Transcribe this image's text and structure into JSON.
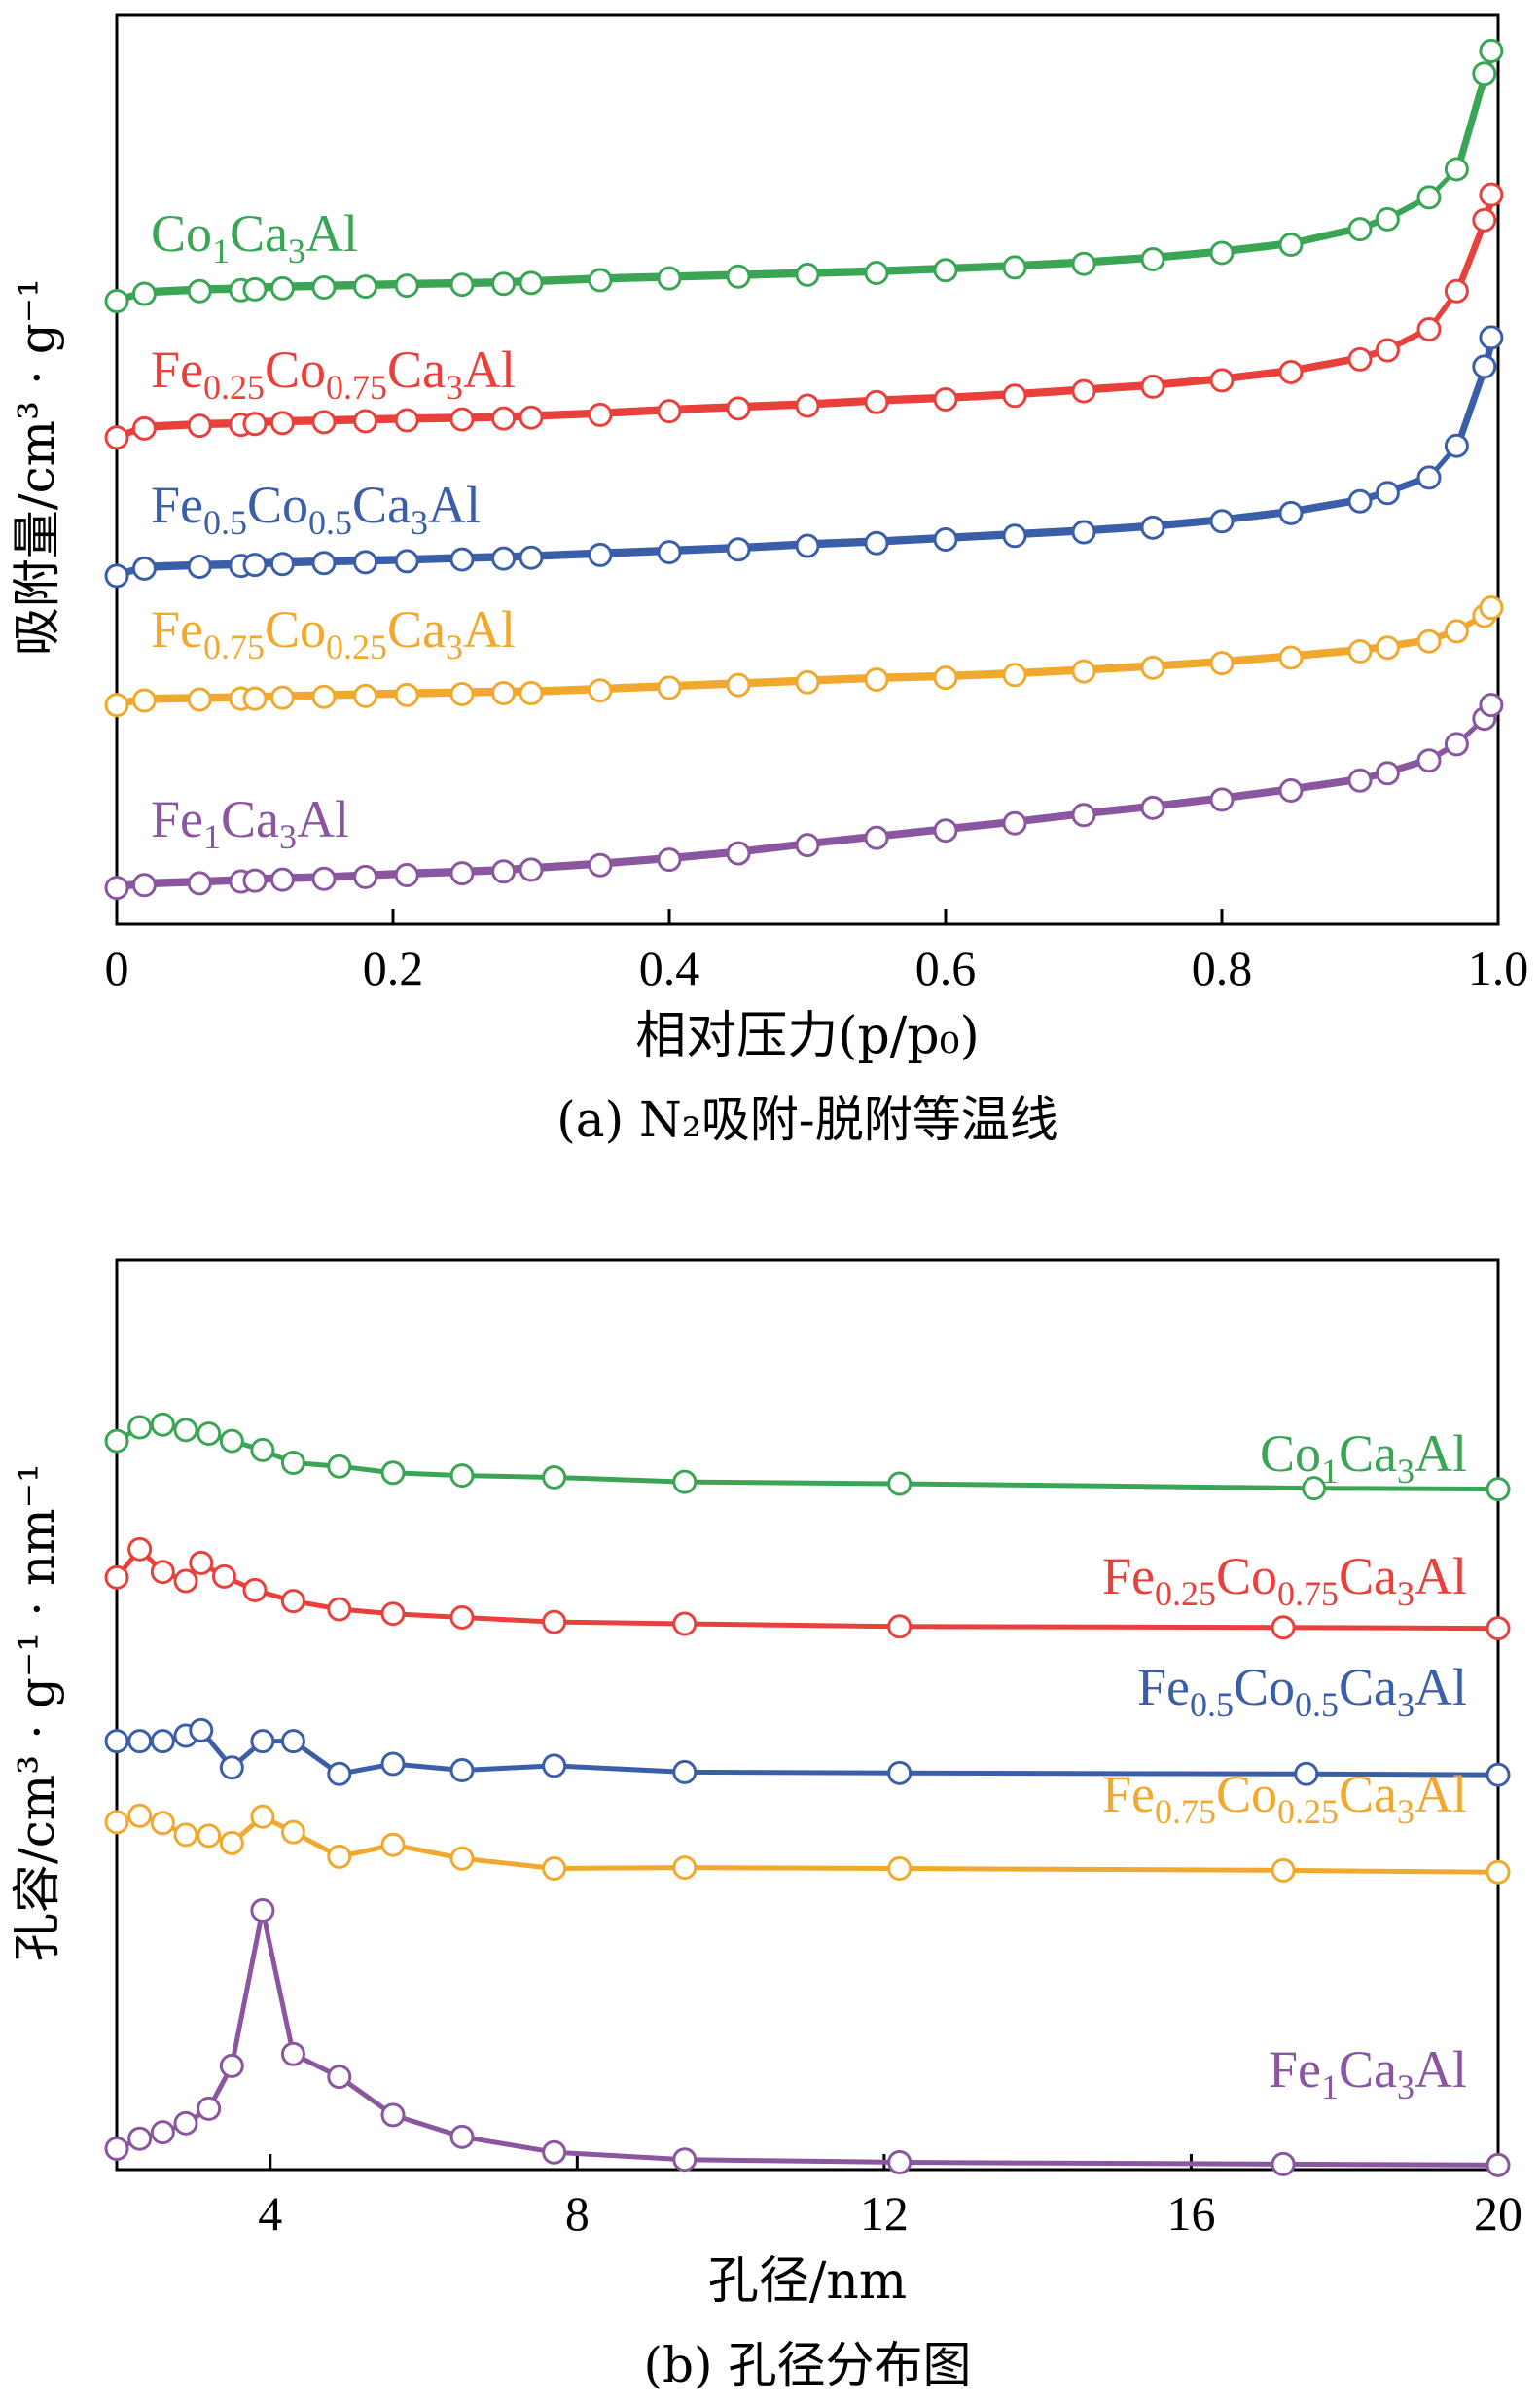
{
  "chart_data": [
    {
      "id": "a",
      "type": "line",
      "caption": "(a) N₂吸附-脱附等温线",
      "xlabel": "相对压力(p/p₀)",
      "ylabel": "吸附量/cm³ · g⁻¹",
      "xlim": [
        0,
        1.0
      ],
      "ylim": [
        0,
        100
      ],
      "xticks": [
        0,
        0.2,
        0.4,
        0.6,
        0.8,
        1.0
      ],
      "xtick_labels": [
        "0",
        "0.2",
        "0.4",
        "0.6",
        "0.8",
        "1.0"
      ],
      "y_ticks_shown": false,
      "x": [
        0,
        0.02,
        0.06,
        0.09,
        0.1,
        0.12,
        0.15,
        0.18,
        0.21,
        0.25,
        0.28,
        0.3,
        0.35,
        0.4,
        0.45,
        0.5,
        0.55,
        0.6,
        0.65,
        0.7,
        0.75,
        0.8,
        0.85,
        0.9,
        0.92,
        0.95,
        0.97,
        0.99,
        0.995
      ],
      "series": [
        {
          "name": "Co₁Ca₃Al",
          "color": "#3aa655",
          "values": [
            68.5,
            69.3,
            69.6,
            69.7,
            69.8,
            69.9,
            70.0,
            70.1,
            70.2,
            70.3,
            70.4,
            70.5,
            70.8,
            71.0,
            71.2,
            71.4,
            71.6,
            71.9,
            72.2,
            72.6,
            73.1,
            73.8,
            74.7,
            76.4,
            77.5,
            79.9,
            83.0,
            93.5,
            96.0
          ]
        },
        {
          "name": "Fe₀.₂₅Co₀.₇₅Ca₃Al",
          "color": "#e8413c",
          "values": [
            53.5,
            54.5,
            54.8,
            54.9,
            55.0,
            55.1,
            55.2,
            55.3,
            55.4,
            55.5,
            55.6,
            55.7,
            56.0,
            56.4,
            56.7,
            57.0,
            57.4,
            57.7,
            58.1,
            58.6,
            59.1,
            59.8,
            60.7,
            62.1,
            63.1,
            65.4,
            69.6,
            77.4,
            80.2
          ]
        },
        {
          "name": "Fe₀.₅Co₀.₅Ca₃Al",
          "color": "#3b5ea8",
          "values": [
            38.3,
            39.1,
            39.3,
            39.4,
            39.5,
            39.6,
            39.7,
            39.8,
            39.9,
            40.1,
            40.2,
            40.3,
            40.6,
            40.9,
            41.2,
            41.6,
            41.9,
            42.3,
            42.7,
            43.1,
            43.6,
            44.3,
            45.2,
            46.5,
            47.4,
            49.1,
            52.6,
            61.3,
            64.5
          ]
        },
        {
          "name": "Fe₀.₇₅Co₀.₂₅Ca₃Al",
          "color": "#f0a92e",
          "values": [
            24.1,
            24.6,
            24.7,
            24.8,
            24.8,
            24.9,
            25.0,
            25.1,
            25.2,
            25.3,
            25.4,
            25.4,
            25.7,
            26.0,
            26.3,
            26.6,
            26.9,
            27.1,
            27.4,
            27.8,
            28.2,
            28.7,
            29.3,
            30.0,
            30.4,
            31.1,
            32.2,
            33.9,
            34.8
          ]
        },
        {
          "name": "Fe₁Ca₃Al",
          "color": "#8a56a0",
          "values": [
            4.0,
            4.3,
            4.5,
            4.7,
            4.8,
            4.9,
            5.0,
            5.2,
            5.4,
            5.6,
            5.8,
            6.0,
            6.5,
            7.1,
            7.8,
            8.7,
            9.5,
            10.3,
            11.1,
            12.0,
            12.8,
            13.7,
            14.7,
            15.8,
            16.6,
            18.0,
            19.8,
            22.6,
            24.1
          ]
        }
      ]
    },
    {
      "id": "b",
      "type": "line",
      "caption": "(b) 孔径分布图",
      "xlabel": "孔径/nm",
      "ylabel": "孔容/cm³ · g⁻¹ · nm⁻¹",
      "xlim": [
        2,
        20
      ],
      "ylim": [
        0,
        100
      ],
      "xticks": [
        4,
        8,
        12,
        16,
        20
      ],
      "xtick_labels": [
        "4",
        "8",
        "12",
        "16",
        "20"
      ],
      "y_ticks_shown": false,
      "series": [
        {
          "name": "Co₁Ca₃Al",
          "color": "#3aa655",
          "x": [
            2.0,
            2.3,
            2.6,
            2.9,
            3.2,
            3.5,
            3.9,
            4.3,
            4.9,
            5.6,
            6.5,
            7.7,
            9.4,
            12.2,
            17.6,
            20.0
          ],
          "values": [
            80.1,
            81.6,
            81.9,
            81.3,
            80.9,
            80.1,
            79.1,
            77.7,
            77.3,
            76.6,
            76.3,
            76.1,
            75.6,
            75.4,
            74.9,
            74.8
          ]
        },
        {
          "name": "Fe₀.₂₅Co₀.₇₅Ca₃Al",
          "color": "#e8413c",
          "x": [
            2.0,
            2.3,
            2.6,
            2.9,
            3.1,
            3.4,
            3.8,
            4.3,
            4.9,
            5.6,
            6.5,
            7.7,
            9.4,
            12.2,
            17.2,
            20.0
          ],
          "values": [
            65.1,
            68.2,
            65.7,
            64.7,
            66.7,
            65.2,
            63.7,
            62.5,
            61.6,
            61.1,
            60.7,
            60.2,
            60.0,
            59.7,
            59.6,
            59.5
          ]
        },
        {
          "name": "Fe₀.₅Co₀.₅Ca₃Al",
          "color": "#3b5ea8",
          "x": [
            2.0,
            2.3,
            2.6,
            2.9,
            3.1,
            3.5,
            3.9,
            4.3,
            4.9,
            5.6,
            6.5,
            7.7,
            9.4,
            12.2,
            17.5,
            20.0
          ],
          "values": [
            47.1,
            47.1,
            47.1,
            47.7,
            48.3,
            44.2,
            47.1,
            47.1,
            43.5,
            44.6,
            43.9,
            44.4,
            43.7,
            43.6,
            43.5,
            43.4
          ]
        },
        {
          "name": "Fe₀.₇₅Co₀.₂₅Ca₃Al",
          "color": "#f0a92e",
          "x": [
            2.0,
            2.3,
            2.6,
            2.9,
            3.2,
            3.5,
            3.9,
            4.3,
            4.9,
            5.6,
            6.5,
            7.7,
            9.4,
            12.2,
            17.2,
            20.0
          ],
          "values": [
            38.2,
            38.9,
            38.1,
            36.8,
            36.7,
            35.9,
            38.8,
            37.1,
            34.4,
            35.7,
            34.2,
            33.1,
            33.2,
            33.1,
            32.9,
            32.7
          ]
        },
        {
          "name": "Fe₁Ca₃Al",
          "color": "#8a56a0",
          "x": [
            2.0,
            2.3,
            2.6,
            2.9,
            3.2,
            3.5,
            3.9,
            4.3,
            4.9,
            5.6,
            6.5,
            7.7,
            9.4,
            12.2,
            17.2,
            20.0
          ],
          "values": [
            2.3,
            3.4,
            4.1,
            5.1,
            6.7,
            11.4,
            28.5,
            12.7,
            10.2,
            6.0,
            3.6,
            1.9,
            1.1,
            0.8,
            0.6,
            0.5
          ]
        }
      ]
    }
  ]
}
